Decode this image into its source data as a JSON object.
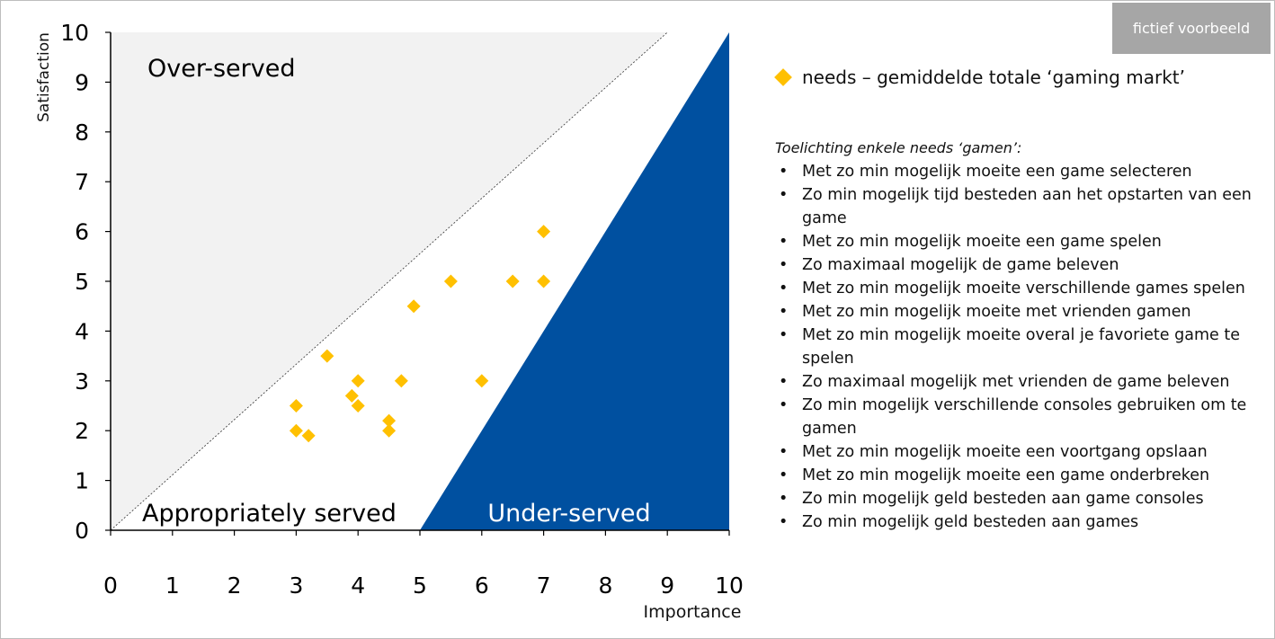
{
  "badge": "fictief voorbeeld",
  "legend": {
    "label": "needs – gemiddelde totale ‘gaming markt’"
  },
  "notes": {
    "title": "Toelichting enkele needs ‘gamen’:",
    "items": [
      "Met zo min mogelijk moeite een game selecteren",
      "Zo min mogelijk tijd besteden aan het opstarten van een game",
      "Met zo min mogelijk moeite een game spelen",
      "Zo maximaal mogelijk de game beleven",
      "Met zo min mogelijk moeite verschillende games spelen",
      "Met zo min mogelijk moeite met vrienden gamen",
      "Met zo min mogelijk moeite overal je favoriete game te spelen",
      "Zo maximaal mogelijk met vrienden de game beleven",
      "Zo min mogelijk verschillende consoles gebruiken om te gamen",
      "Met zo min mogelijk moeite een voortgang opslaan",
      "Met zo min mogelijk moeite een game onderbreken",
      "Zo min mogelijk geld besteden aan game consoles",
      "Zo min mogelijk geld besteden aan games"
    ]
  },
  "chart_data": {
    "type": "scatter",
    "xlabel": "Importance",
    "ylabel": "Satisfaction",
    "xlim": [
      0,
      10
    ],
    "ylim": [
      0,
      10
    ],
    "xticks": [
      "0",
      "1",
      "2",
      "3",
      "4",
      "5",
      "6",
      "7",
      "8",
      "9",
      "10"
    ],
    "yticks": [
      "0",
      "1",
      "2",
      "3",
      "4",
      "5",
      "6",
      "7",
      "8",
      "9",
      "10"
    ],
    "regions": [
      {
        "label": "Over-served",
        "color": "#f2f2f2"
      },
      {
        "label": "Appropriately served",
        "color": "#ffffff"
      },
      {
        "label": "Under-served",
        "color": "#0050a0"
      }
    ],
    "colors": {
      "points": "#ffc000",
      "under_served": "#0050a0",
      "over_served": "#f2f2f2"
    },
    "series": [
      {
        "name": "needs – gemiddelde totale ‘gaming markt’",
        "points": [
          {
            "x": 3.0,
            "y": 2.5
          },
          {
            "x": 3.0,
            "y": 2.0
          },
          {
            "x": 3.2,
            "y": 1.9
          },
          {
            "x": 3.5,
            "y": 3.5
          },
          {
            "x": 3.9,
            "y": 2.7
          },
          {
            "x": 4.0,
            "y": 3.0
          },
          {
            "x": 4.0,
            "y": 2.5
          },
          {
            "x": 4.5,
            "y": 2.2
          },
          {
            "x": 4.5,
            "y": 2.0
          },
          {
            "x": 4.7,
            "y": 3.0
          },
          {
            "x": 4.9,
            "y": 4.5
          },
          {
            "x": 5.5,
            "y": 5.0
          },
          {
            "x": 6.0,
            "y": 3.0
          },
          {
            "x": 6.5,
            "y": 5.0
          },
          {
            "x": 7.0,
            "y": 6.0
          },
          {
            "x": 7.0,
            "y": 5.0
          }
        ]
      }
    ]
  }
}
